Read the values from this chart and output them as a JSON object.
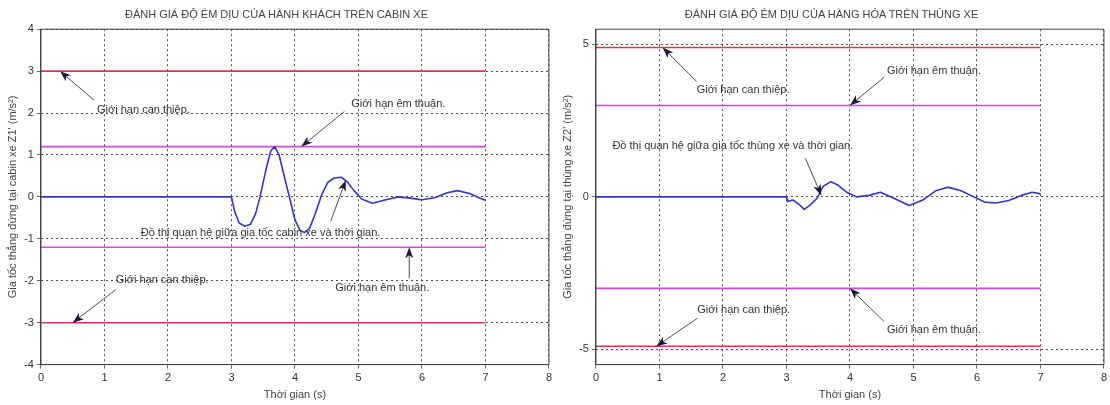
{
  "chart_data": [
    {
      "type": "line",
      "title": "ĐÁNH GIÁ ĐỘ ÊM DỊU CỦA HÀNH KHÁCH TRÊN CABIN XE",
      "xlabel": "Thời gian (s)",
      "ylabel": "Gia tốc thẳng đứng tại cabin xe Z1' (m/s²)",
      "xlim": [
        0,
        8
      ],
      "xticks": [
        0,
        1,
        2,
        3,
        4,
        5,
        6,
        7,
        8
      ],
      "ylim": [
        -4,
        4
      ],
      "yticks": [
        -4,
        -3,
        -2,
        -1,
        0,
        1,
        2,
        3,
        4
      ],
      "grid": true,
      "legend": false,
      "marker": "none",
      "line_style": "solid",
      "series": [
        {
          "color": "#3535cc",
          "x": [
            0,
            3,
            3.05,
            3.12,
            3.21,
            3.3,
            3.38,
            3.45,
            3.55,
            3.62,
            3.68,
            3.75,
            3.83,
            3.92,
            4.0,
            4.08,
            4.15,
            4.23,
            4.32,
            4.42,
            4.52,
            4.62,
            4.73,
            4.83,
            4.93,
            5.05,
            5.22,
            5.4,
            5.63,
            5.82,
            6.0,
            6.2,
            6.4,
            6.56,
            6.75,
            6.9,
            7.0
          ],
          "values": [
            0,
            0,
            -0.35,
            -0.62,
            -0.7,
            -0.65,
            -0.4,
            0,
            0.7,
            1.1,
            1.2,
            1.0,
            0.5,
            -0.05,
            -0.55,
            -0.8,
            -0.85,
            -0.75,
            -0.4,
            0.05,
            0.35,
            0.45,
            0.47,
            0.35,
            0.15,
            -0.05,
            -0.15,
            -0.08,
            0,
            -0.03,
            -0.07,
            -0.02,
            0.1,
            0.15,
            0.08,
            -0.02,
            -0.08
          ]
        },
        {
          "color": "#e03355",
          "x": [
            0,
            7
          ],
          "values": [
            3,
            3
          ]
        },
        {
          "color": "#dd44dd",
          "x": [
            0,
            7
          ],
          "values": [
            1.2,
            1.2
          ]
        },
        {
          "color": "#dd44dd",
          "x": [
            0,
            7
          ],
          "values": [
            -1.2,
            -1.2
          ]
        },
        {
          "color": "#e03355",
          "x": [
            0,
            7
          ],
          "values": [
            -3,
            -3
          ]
        }
      ],
      "annotations": [
        {
          "text": "Giới hạn can thiệp.",
          "x": 0.3,
          "y": 3
        },
        {
          "text": "Giới hạn êm thuận.",
          "x": 4.1,
          "y": 1.2
        },
        {
          "text": "Đồ thị quan hệ giữa gia tốc cabin xe và thời gian.",
          "x": 4.8,
          "y": 0.4
        },
        {
          "text": "Giới hạn êm thuận.",
          "x": 5.8,
          "y": -1.2
        },
        {
          "text": "Giới hạn can thiệp.",
          "x": 0.5,
          "y": -3
        }
      ]
    },
    {
      "type": "line",
      "title": "ĐÁNH GIÁ ĐỘ ÊM DỊU CỦA HÀNG HÓA TRÊN THÙNG XE",
      "xlabel": "Thời gian (s)",
      "ylabel": "Gia tốc thẳng đứng tại thùng xe Z2' (m/s²)",
      "xlim": [
        0,
        8
      ],
      "xticks": [
        0,
        1,
        2,
        3,
        4,
        5,
        6,
        7,
        8
      ],
      "ylim": [
        -5.5,
        5.5
      ],
      "yticks": [
        -5,
        0,
        5
      ],
      "grid": true,
      "legend": false,
      "marker": "none",
      "line_style": "solid",
      "series": [
        {
          "color": "#3535cc",
          "x": [
            0,
            3,
            3.02,
            3.1,
            3.2,
            3.28,
            3.38,
            3.48,
            3.58,
            3.7,
            3.8,
            3.95,
            4.1,
            4.3,
            4.48,
            4.7,
            4.93,
            5.15,
            5.35,
            5.54,
            5.75,
            5.95,
            6.12,
            6.3,
            6.5,
            6.7,
            6.87,
            7.0
          ],
          "values": [
            0,
            0,
            -0.15,
            -0.1,
            -0.25,
            -0.41,
            -0.25,
            -0.05,
            0.35,
            0.5,
            0.4,
            0.15,
            0,
            0.05,
            0.15,
            -0.05,
            -0.28,
            -0.1,
            0.2,
            0.32,
            0.2,
            0.0,
            -0.17,
            -0.2,
            -0.12,
            0.05,
            0.15,
            0.1
          ]
        },
        {
          "color": "#e03355",
          "x": [
            0,
            7
          ],
          "values": [
            4.9,
            4.9
          ]
        },
        {
          "color": "#dd44dd",
          "x": [
            0,
            7
          ],
          "values": [
            3,
            3
          ]
        },
        {
          "color": "#dd44dd",
          "x": [
            0,
            7
          ],
          "values": [
            -3,
            -3
          ]
        },
        {
          "color": "#e03355",
          "x": [
            0,
            7
          ],
          "values": [
            -4.9,
            -4.9
          ]
        }
      ],
      "annotations": [
        {
          "text": "Giới hạn can thiệp.",
          "x": 1.05,
          "y": 4.9
        },
        {
          "text": "Giới hạn êm thuận.",
          "x": 4.0,
          "y": 3
        },
        {
          "text": "Đồ thị quan hệ giữa gia tốc thùng xe và thời gian.",
          "x": 3.55,
          "y": 0.05
        },
        {
          "text": "Giới hạn êm thuận.",
          "x": 4.0,
          "y": -3
        },
        {
          "text": "Giới hạn can thiệp.",
          "x": 0.95,
          "y": -4.9
        }
      ]
    }
  ]
}
